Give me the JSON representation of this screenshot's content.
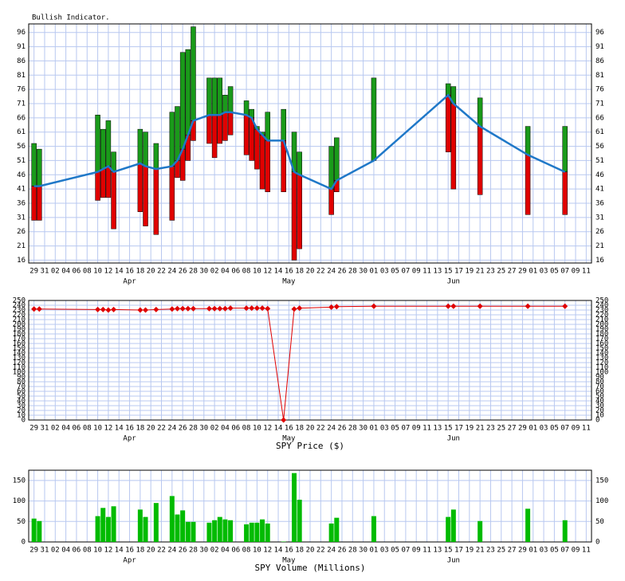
{
  "chart_data": [
    {
      "type": "bullish",
      "title": "Bullish Indicator.",
      "xlim": [
        -1,
        105
      ],
      "xticks": [
        {
          "value": 0,
          "label": "29"
        },
        {
          "value": 2,
          "label": "31"
        },
        {
          "value": 4,
          "label": "02"
        },
        {
          "value": 6,
          "label": "04"
        },
        {
          "value": 8,
          "label": "06"
        },
        {
          "value": 10,
          "label": "08"
        },
        {
          "value": 12,
          "label": "10"
        },
        {
          "value": 14,
          "label": "12"
        },
        {
          "value": 16,
          "label": "14"
        },
        {
          "value": 18,
          "label": "16"
        },
        {
          "value": 20,
          "label": "18"
        },
        {
          "value": 22,
          "label": "20"
        },
        {
          "value": 24,
          "label": "22"
        },
        {
          "value": 26,
          "label": "24"
        },
        {
          "value": 28,
          "label": "26"
        },
        {
          "value": 30,
          "label": "28"
        },
        {
          "value": 32,
          "label": "30"
        },
        {
          "value": 34,
          "label": "02"
        },
        {
          "value": 36,
          "label": "04"
        },
        {
          "value": 38,
          "label": "06"
        },
        {
          "value": 40,
          "label": "08"
        },
        {
          "value": 42,
          "label": "10"
        },
        {
          "value": 44,
          "label": "12"
        },
        {
          "value": 46,
          "label": "14"
        },
        {
          "value": 48,
          "label": "16"
        },
        {
          "value": 50,
          "label": "18"
        },
        {
          "value": 52,
          "label": "20"
        },
        {
          "value": 54,
          "label": "22"
        },
        {
          "value": 56,
          "label": "24"
        },
        {
          "value": 58,
          "label": "26"
        },
        {
          "value": 60,
          "label": "28"
        },
        {
          "value": 62,
          "label": "30"
        },
        {
          "value": 64,
          "label": "01"
        },
        {
          "value": 66,
          "label": "03"
        },
        {
          "value": 68,
          "label": "05"
        },
        {
          "value": 70,
          "label": "07"
        },
        {
          "value": 72,
          "label": "09"
        },
        {
          "value": 74,
          "label": "11"
        },
        {
          "value": 76,
          "label": "13"
        },
        {
          "value": 78,
          "label": "15"
        },
        {
          "value": 80,
          "label": "17"
        },
        {
          "value": 82,
          "label": "19"
        },
        {
          "value": 84,
          "label": "21"
        },
        {
          "value": 86,
          "label": "23"
        },
        {
          "value": 88,
          "label": "25"
        },
        {
          "value": 90,
          "label": "27"
        },
        {
          "value": 92,
          "label": "29"
        },
        {
          "value": 94,
          "label": "01"
        },
        {
          "value": 96,
          "label": "03"
        },
        {
          "value": 98,
          "label": "05"
        },
        {
          "value": 100,
          "label": "07"
        },
        {
          "value": 102,
          "label": "09"
        },
        {
          "value": 104,
          "label": "11"
        }
      ],
      "months": [
        {
          "value": 18,
          "label": "Apr"
        },
        {
          "value": 48,
          "label": "May"
        },
        {
          "value": 79,
          "label": "Jun"
        }
      ],
      "ylim": [
        15,
        99
      ],
      "yticks": [
        16,
        21,
        26,
        31,
        36,
        41,
        46,
        51,
        56,
        61,
        66,
        71,
        76,
        81,
        86,
        91,
        96
      ],
      "grid": true,
      "x": [
        0,
        1,
        12,
        13,
        14,
        15,
        20,
        21,
        23,
        26,
        27,
        28,
        29,
        30,
        33,
        34,
        35,
        36,
        37,
        40,
        41,
        42,
        43,
        44,
        47,
        49,
        50,
        56,
        57,
        64,
        78,
        79,
        84,
        93,
        100
      ],
      "high": {
        "color": "#1a9a1a",
        "values": [
          57,
          55,
          67,
          62,
          65,
          54,
          62,
          61,
          57,
          68,
          70,
          89,
          90,
          98,
          80,
          80,
          80,
          74,
          77,
          72,
          69,
          63,
          61,
          68,
          69,
          61,
          54,
          56,
          59,
          80,
          78,
          77,
          73,
          63,
          63
        ]
      },
      "low": {
        "color": "#e00000",
        "values": [
          30,
          30,
          37,
          38,
          38,
          27,
          33,
          28,
          25,
          30,
          45,
          44,
          51,
          58,
          57,
          52,
          57,
          58,
          60,
          53,
          51,
          48,
          41,
          40,
          40,
          16,
          20,
          32,
          40,
          51,
          54,
          41,
          39,
          32,
          32
        ]
      },
      "line": {
        "color": "#1f78c8",
        "values": [
          42,
          42,
          47,
          48,
          49,
          47,
          50,
          49,
          48,
          49,
          51,
          55,
          60,
          65,
          67,
          67,
          67,
          68,
          68,
          67,
          66,
          62,
          60,
          58,
          58,
          47,
          46,
          41,
          44,
          51,
          74,
          71,
          63,
          53,
          47
        ]
      }
    },
    {
      "type": "line",
      "xlabel": "SPY Price ($)",
      "color": "#e00000",
      "ylim": [
        0,
        250
      ],
      "yticks": [
        0,
        10,
        20,
        30,
        40,
        50,
        60,
        70,
        80,
        90,
        100,
        110,
        120,
        130,
        140,
        150,
        160,
        170,
        180,
        190,
        200,
        210,
        220,
        230,
        240,
        250
      ],
      "grid": true,
      "x": [
        0,
        1,
        12,
        13,
        14,
        15,
        20,
        21,
        23,
        26,
        27,
        28,
        29,
        30,
        33,
        34,
        35,
        36,
        37,
        40,
        41,
        42,
        43,
        44,
        47,
        49,
        50,
        56,
        57,
        64,
        78,
        79,
        84,
        93,
        100
      ],
      "values": [
        232,
        232,
        231,
        231,
        230,
        231,
        230,
        230,
        231,
        232,
        233,
        233,
        233,
        233,
        233,
        233,
        233,
        233,
        234,
        234,
        234,
        234,
        234,
        233,
        0,
        232,
        234,
        236,
        237,
        238,
        238,
        238,
        238,
        238,
        238
      ]
    },
    {
      "type": "bar",
      "xlabel": "SPY Volume (Millions)",
      "color": "#00bb00",
      "ylim": [
        0,
        175
      ],
      "yticks": [
        0,
        50,
        100,
        150
      ],
      "grid": true,
      "x": [
        0,
        1,
        12,
        13,
        14,
        15,
        20,
        21,
        23,
        26,
        27,
        28,
        29,
        30,
        33,
        34,
        35,
        36,
        37,
        40,
        41,
        42,
        43,
        44,
        47,
        49,
        50,
        56,
        57,
        64,
        78,
        79,
        84,
        93,
        100
      ],
      "values": [
        57,
        51,
        63,
        83,
        61,
        87,
        79,
        61,
        95,
        112,
        67,
        77,
        49,
        49,
        47,
        53,
        61,
        55,
        53,
        43,
        47,
        47,
        55,
        45,
        1,
        168,
        103,
        45,
        59,
        63,
        61,
        79,
        51,
        81,
        53
      ]
    }
  ]
}
